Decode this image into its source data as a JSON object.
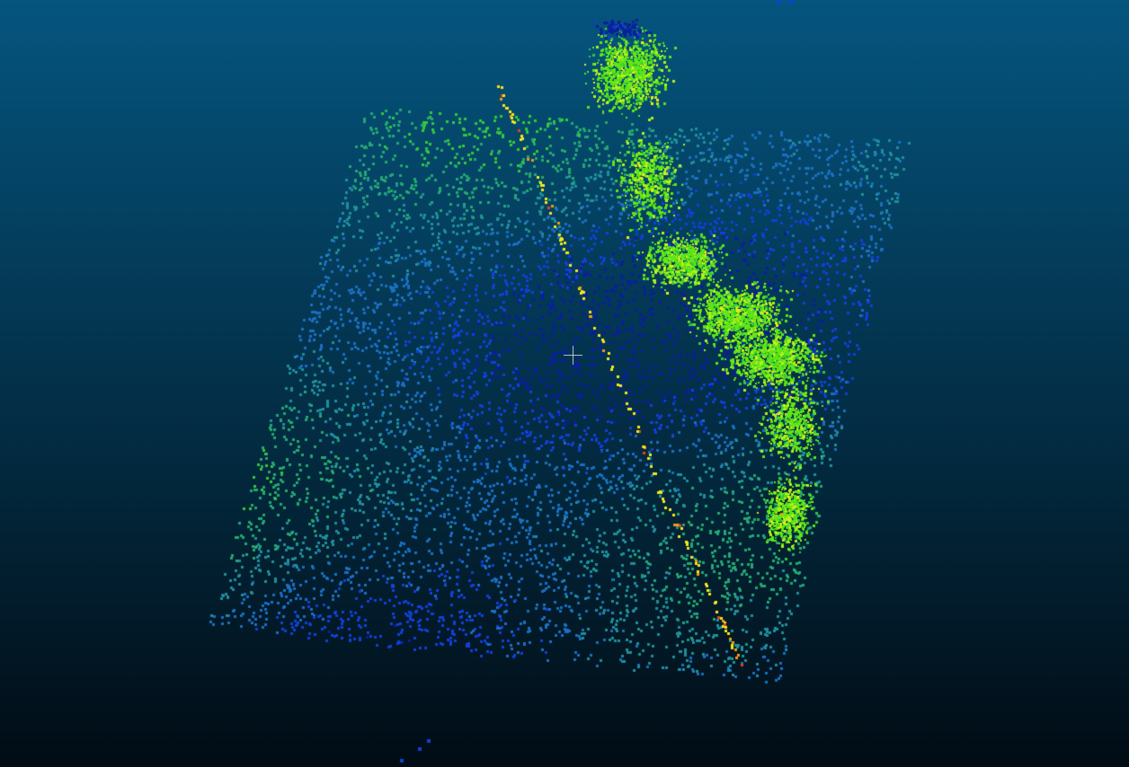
{
  "viewer": {
    "background_top": "#05557f",
    "background_bottom": "#010c14",
    "colormap": [
      "#0a1ea0",
      "#1140d8",
      "#1a6fc0",
      "#1f8f9a",
      "#23a870",
      "#33c83a",
      "#5ee616",
      "#b8f01a",
      "#f2e81a",
      "#f59a12",
      "#e8421a"
    ],
    "crosshair_color": "#c9d6e3",
    "point_shape": "square-point",
    "crosshair_icon": "crosshair-icon"
  }
}
